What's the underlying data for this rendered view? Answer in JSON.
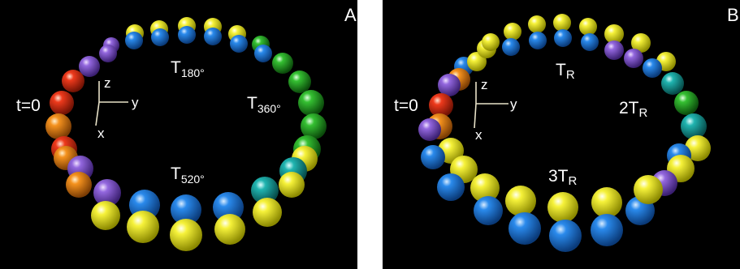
{
  "panels": [
    {
      "id": "A",
      "letter": "A",
      "t0_label": "t=0",
      "axes": {
        "z": "z",
        "y": "y",
        "x": "x"
      },
      "labels": [
        {
          "base": "T",
          "sub": "180°"
        },
        {
          "base": "T",
          "sub": "360°"
        },
        {
          "base": "T",
          "sub": "520°"
        }
      ]
    },
    {
      "id": "B",
      "letter": "B",
      "t0_label": "t=0",
      "axes": {
        "z": "z",
        "y": "y",
        "x": "x"
      },
      "labels": [
        {
          "base": "T",
          "sub": "R"
        },
        {
          "base": "2T",
          "sub": "R"
        },
        {
          "base": "3T",
          "sub": "R"
        }
      ]
    }
  ],
  "colors": {
    "background": "#000000",
    "separator": "#ffffff",
    "sphere_yellow": "#f2ee2a",
    "sphere_blue": "#1c7fe0",
    "sphere_purple": "#8a5fd6",
    "sphere_green": "#2fb52a",
    "sphere_cyan": "#1aa7a5",
    "sphere_red": "#e8321a",
    "sphere_orange": "#f08a1a"
  }
}
